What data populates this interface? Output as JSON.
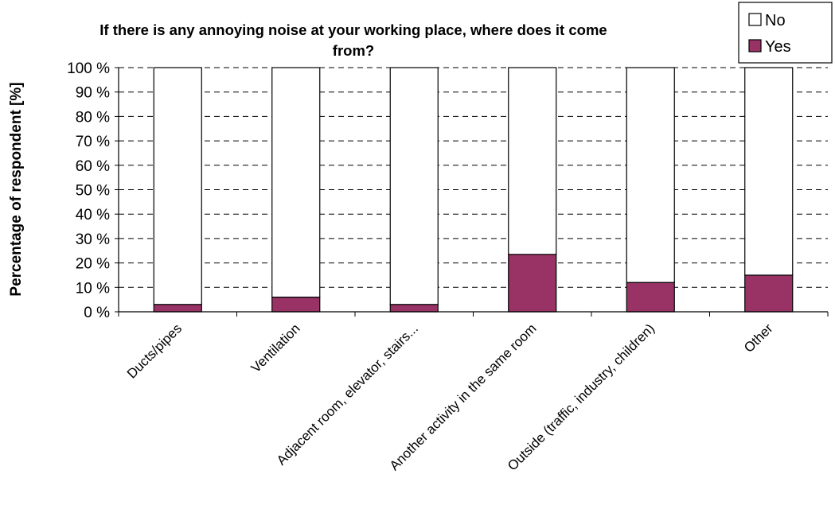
{
  "chart_data": {
    "type": "bar",
    "stacked": true,
    "title_lines": [
      "If there is any annoying noise at your working place, where does it come",
      "from?"
    ],
    "xlabel": "",
    "ylabel": "Percentage of respondent [%]",
    "ylim": [
      0,
      100
    ],
    "yticks": [
      "0 %",
      "10 %",
      "20 %",
      "30 %",
      "40 %",
      "50 %",
      "60 %",
      "70 %",
      "80 %",
      "90 %",
      "100 %"
    ],
    "grid": true,
    "legend_position": "top-right",
    "categories": [
      "Ducts/pipes",
      "Ventilation",
      "Adjacent room, elevator, stairs...",
      "Another activity in the same room",
      "Outside (traffic, industry, children)",
      "Other"
    ],
    "series": [
      {
        "name": "Yes",
        "color": "#993366",
        "values": [
          3,
          6,
          3,
          23.5,
          12,
          15
        ]
      },
      {
        "name": "No",
        "color": "#ffffff",
        "values": [
          97,
          94,
          97,
          76.5,
          88,
          85
        ]
      }
    ],
    "legend_order": [
      "No",
      "Yes"
    ]
  }
}
